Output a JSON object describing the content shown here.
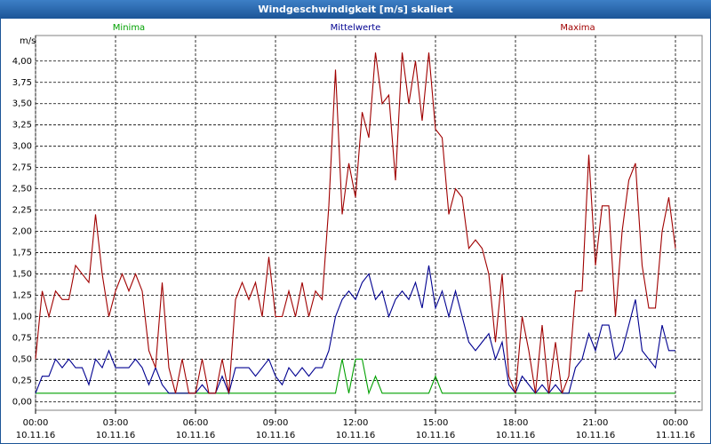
{
  "chart_data": {
    "type": "line",
    "title": "Windgeschwindigkeit [m/s] skaliert",
    "ylabel": "m/s",
    "x": [
      0,
      0.25,
      0.5,
      0.75,
      1,
      1.25,
      1.5,
      1.75,
      2,
      2.25,
      2.5,
      2.75,
      3,
      3.25,
      3.5,
      3.75,
      4,
      4.25,
      4.5,
      4.75,
      5,
      5.25,
      5.5,
      5.75,
      6,
      6.25,
      6.5,
      6.75,
      7,
      7.25,
      7.5,
      7.75,
      8,
      8.25,
      8.5,
      8.75,
      9,
      9.25,
      9.5,
      9.75,
      10,
      10.25,
      10.5,
      10.75,
      11,
      11.25,
      11.5,
      11.75,
      12,
      12.25,
      12.5,
      12.75,
      13,
      13.25,
      13.5,
      13.75,
      14,
      14.25,
      14.5,
      14.75,
      15,
      15.25,
      15.5,
      15.75,
      16,
      16.25,
      16.5,
      16.75,
      17,
      17.25,
      17.5,
      17.75,
      18,
      18.25,
      18.5,
      18.75,
      19,
      19.25,
      19.5,
      19.75,
      20,
      20.25,
      20.5,
      20.75,
      21,
      21.25,
      21.5,
      21.75,
      22,
      22.25,
      22.5,
      22.75,
      23,
      23.25,
      23.5,
      23.75,
      24
    ],
    "series": [
      {
        "name": "Minima",
        "color": "#00a000",
        "values": [
          0.1,
          0.1,
          0.1,
          0.1,
          0.1,
          0.1,
          0.1,
          0.1,
          0.1,
          0.1,
          0.1,
          0.1,
          0.1,
          0.1,
          0.1,
          0.1,
          0.1,
          0.1,
          0.1,
          0.1,
          0.1,
          0.1,
          0.1,
          0.1,
          0.1,
          0.1,
          0.1,
          0.1,
          0.1,
          0.1,
          0.1,
          0.1,
          0.1,
          0.1,
          0.1,
          0.1,
          0.1,
          0.1,
          0.1,
          0.1,
          0.1,
          0.1,
          0.1,
          0.1,
          0.1,
          0.1,
          0.5,
          0.1,
          0.5,
          0.5,
          0.1,
          0.3,
          0.1,
          0.1,
          0.1,
          0.1,
          0.1,
          0.1,
          0.1,
          0.1,
          0.3,
          0.1,
          0.1,
          0.1,
          0.1,
          0.1,
          0.1,
          0.1,
          0.1,
          0.1,
          0.1,
          0.1,
          0.1,
          0.1,
          0.1,
          0.1,
          0.1,
          0.1,
          0.1,
          0.1,
          0.1,
          0.1,
          0.1,
          0.1,
          0.1,
          0.1,
          0.1,
          0.1,
          0.1,
          0.1,
          0.1,
          0.1,
          0.1,
          0.1,
          0.1,
          0.1,
          0.1
        ]
      },
      {
        "name": "Mittelwerte",
        "color": "#000090",
        "values": [
          0.1,
          0.3,
          0.3,
          0.5,
          0.4,
          0.5,
          0.4,
          0.4,
          0.2,
          0.5,
          0.4,
          0.6,
          0.4,
          0.4,
          0.4,
          0.5,
          0.4,
          0.2,
          0.4,
          0.2,
          0.1,
          0.1,
          0.1,
          0.1,
          0.1,
          0.2,
          0.1,
          0.1,
          0.3,
          0.1,
          0.4,
          0.4,
          0.4,
          0.3,
          0.4,
          0.5,
          0.3,
          0.2,
          0.4,
          0.3,
          0.4,
          0.3,
          0.4,
          0.4,
          0.6,
          1.0,
          1.2,
          1.3,
          1.2,
          1.4,
          1.5,
          1.2,
          1.3,
          1.0,
          1.2,
          1.3,
          1.2,
          1.4,
          1.1,
          1.6,
          1.1,
          1.3,
          1.0,
          1.3,
          1.0,
          0.7,
          0.6,
          0.7,
          0.8,
          0.5,
          0.7,
          0.2,
          0.1,
          0.3,
          0.2,
          0.1,
          0.2,
          0.1,
          0.2,
          0.1,
          0.1,
          0.4,
          0.5,
          0.8,
          0.6,
          0.9,
          0.9,
          0.5,
          0.6,
          0.9,
          1.2,
          0.6,
          0.5,
          0.4,
          0.9,
          0.6,
          0.6
        ]
      },
      {
        "name": "Maxima",
        "color": "#a00000",
        "values": [
          0.5,
          1.3,
          1.0,
          1.3,
          1.2,
          1.2,
          1.6,
          1.5,
          1.4,
          2.2,
          1.5,
          1.0,
          1.3,
          1.5,
          1.3,
          1.5,
          1.3,
          0.6,
          0.4,
          1.4,
          0.4,
          0.1,
          0.5,
          0.1,
          0.1,
          0.5,
          0.1,
          0.1,
          0.5,
          0.1,
          1.2,
          1.4,
          1.2,
          1.4,
          1.0,
          1.7,
          1.0,
          1.0,
          1.3,
          1.0,
          1.4,
          1.0,
          1.3,
          1.2,
          2.3,
          3.9,
          2.2,
          2.8,
          2.4,
          3.4,
          3.1,
          4.1,
          3.5,
          3.6,
          2.6,
          4.1,
          3.5,
          4.0,
          3.3,
          4.1,
          3.2,
          3.1,
          2.2,
          2.5,
          2.4,
          1.8,
          1.9,
          1.8,
          1.5,
          0.7,
          1.5,
          0.3,
          0.1,
          1.0,
          0.6,
          0.1,
          0.9,
          0.1,
          0.7,
          0.1,
          0.3,
          1.3,
          1.3,
          2.9,
          1.6,
          2.3,
          2.3,
          1.0,
          2.0,
          2.6,
          2.8,
          1.6,
          1.1,
          1.1,
          2.0,
          2.4,
          1.8
        ]
      }
    ],
    "xlim": [
      0,
      25
    ],
    "xticks": [
      {
        "value": 0,
        "label": "00:00 10.11.16"
      },
      {
        "value": 3,
        "label": "03:00 10.11.16"
      },
      {
        "value": 6,
        "label": "06:00 10.11.16"
      },
      {
        "value": 9,
        "label": "09:00 10.11.16"
      },
      {
        "value": 12,
        "label": "12:00 10.11.16"
      },
      {
        "value": 15,
        "label": "15:00 10.11.16"
      },
      {
        "value": 18,
        "label": "18:00 10.11.16"
      },
      {
        "value": 21,
        "label": "21:00 10.11.16"
      },
      {
        "value": 24,
        "label": "00:00 11.11.16"
      }
    ],
    "ylim": [
      -0.1,
      4.3
    ],
    "yticks": [
      {
        "value": 0,
        "label": "0,00"
      },
      {
        "value": 0.25,
        "label": "0,25"
      },
      {
        "value": 0.5,
        "label": "0,50"
      },
      {
        "value": 0.75,
        "label": "0,75"
      },
      {
        "value": 1,
        "label": "1,00"
      },
      {
        "value": 1.25,
        "label": "1,25"
      },
      {
        "value": 1.5,
        "label": "1,50"
      },
      {
        "value": 1.75,
        "label": "1,75"
      },
      {
        "value": 2,
        "label": "2,00"
      },
      {
        "value": 2.25,
        "label": "2,25"
      },
      {
        "value": 2.5,
        "label": "2,50"
      },
      {
        "value": 2.75,
        "label": "2,75"
      },
      {
        "value": 3,
        "label": "3,00"
      },
      {
        "value": 3.25,
        "label": "3,25"
      },
      {
        "value": 3.5,
        "label": "3,50"
      },
      {
        "value": 3.75,
        "label": "3,75"
      },
      {
        "value": 4,
        "label": "4,00"
      }
    ],
    "grid": true
  }
}
